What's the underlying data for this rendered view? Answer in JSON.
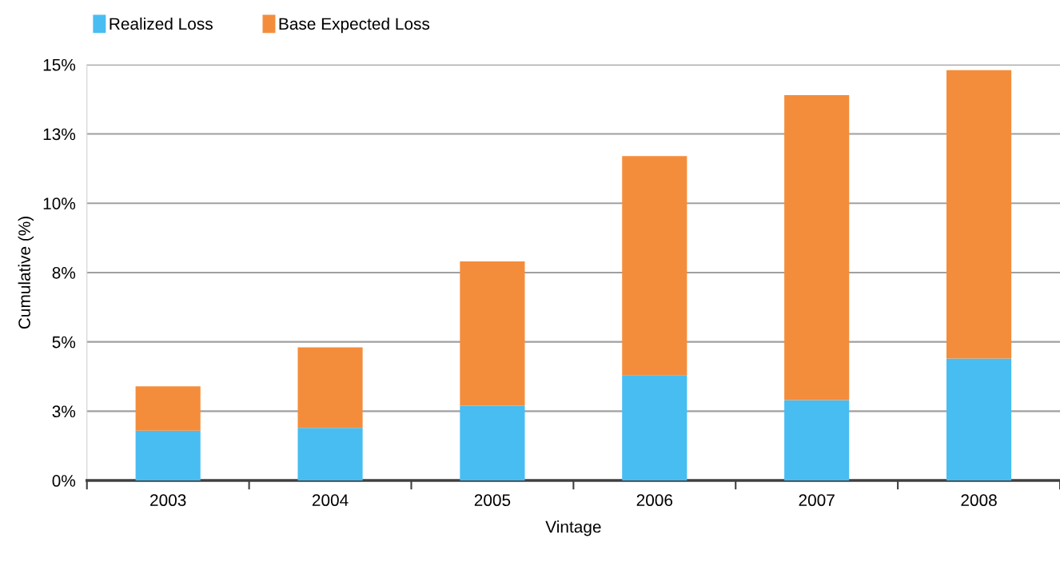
{
  "chart_data": {
    "type": "bar",
    "stacked": true,
    "xlabel": "Vintage",
    "ylabel": "Cumulative (%)",
    "categories": [
      "2003",
      "2004",
      "2005",
      "2006",
      "2007",
      "2008"
    ],
    "series": [
      {
        "name": "Realized Loss",
        "color": "#47bdf2",
        "values": [
          1.8,
          1.9,
          2.7,
          3.8,
          2.9,
          4.4
        ]
      },
      {
        "name": "Base Expected Loss",
        "color": "#f48d3b",
        "values": [
          1.6,
          2.9,
          5.2,
          7.9,
          11.0,
          10.4
        ]
      }
    ],
    "ylim": [
      0,
      15
    ],
    "yticks": [
      {
        "value": 0,
        "label": "0%"
      },
      {
        "value": 2.5,
        "label": "3%"
      },
      {
        "value": 5,
        "label": "5%"
      },
      {
        "value": 7.5,
        "label": "8%"
      },
      {
        "value": 10,
        "label": "10%"
      },
      {
        "value": 12.5,
        "label": "13%"
      },
      {
        "value": 15,
        "label": "15%"
      }
    ],
    "grid": "y",
    "legend": "top left"
  }
}
